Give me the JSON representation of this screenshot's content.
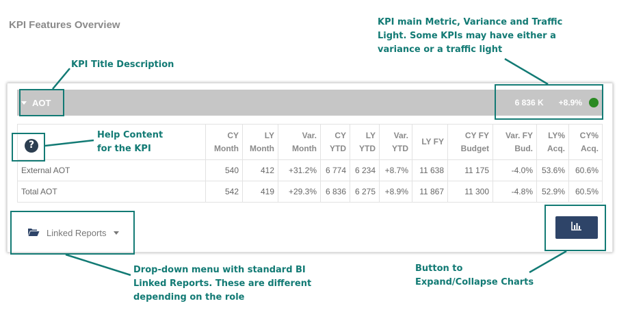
{
  "page_title": "KPI Features Overview",
  "callouts": {
    "main_metric": [
      "KPI main Metric, Variance and Traffic",
      "Light. Some KPIs may have either a",
      "variance or a traffic light"
    ],
    "title_description": [
      "KPI Title Description"
    ],
    "help_content": [
      "Help Content",
      "for the KPI"
    ],
    "linked_reports": [
      "Drop-down menu with standard BI",
      "Linked Reports.  These are different",
      "depending on the role"
    ],
    "chart_button": [
      "Button to",
      "Expand/Collapse Charts"
    ]
  },
  "kpi": {
    "title": "AOT",
    "main_value": "6 836 K",
    "variance": "+8.9%",
    "traffic_light_color": "#2a8a22"
  },
  "help_icon_glyph": "?",
  "table": {
    "columns": [
      [
        "CY",
        "Month"
      ],
      [
        "LY",
        "Month"
      ],
      [
        "Var.",
        "Month"
      ],
      [
        "CY",
        "YTD"
      ],
      [
        "LY",
        "YTD"
      ],
      [
        "Var.",
        "YTD"
      ],
      [
        "LY FY"
      ],
      [
        "CY FY",
        "Budget"
      ],
      [
        "Var. FY",
        "Bud."
      ],
      [
        "LY%",
        "Acq."
      ],
      [
        "CY%",
        "Acq."
      ]
    ],
    "rows": [
      {
        "label": "External AOT",
        "values": [
          "540",
          "412",
          "+31.2%",
          "6 774",
          "6 234",
          "+8.7%",
          "11 638",
          "11 175",
          "-4.0%",
          "53.6%",
          "60.6%"
        ]
      },
      {
        "label": "Total AOT",
        "values": [
          "542",
          "419",
          "+29.3%",
          "6 836",
          "6 275",
          "+8.9%",
          "11 867",
          "11 300",
          "-4.8%",
          "52.9%",
          "60.5%"
        ]
      }
    ]
  },
  "linked_reports_label": "Linked Reports",
  "colors": {
    "callout": "#127a74",
    "header_bar": "#c6c6c6",
    "button": "#2e4468",
    "help_icon": "#2c3e50"
  }
}
